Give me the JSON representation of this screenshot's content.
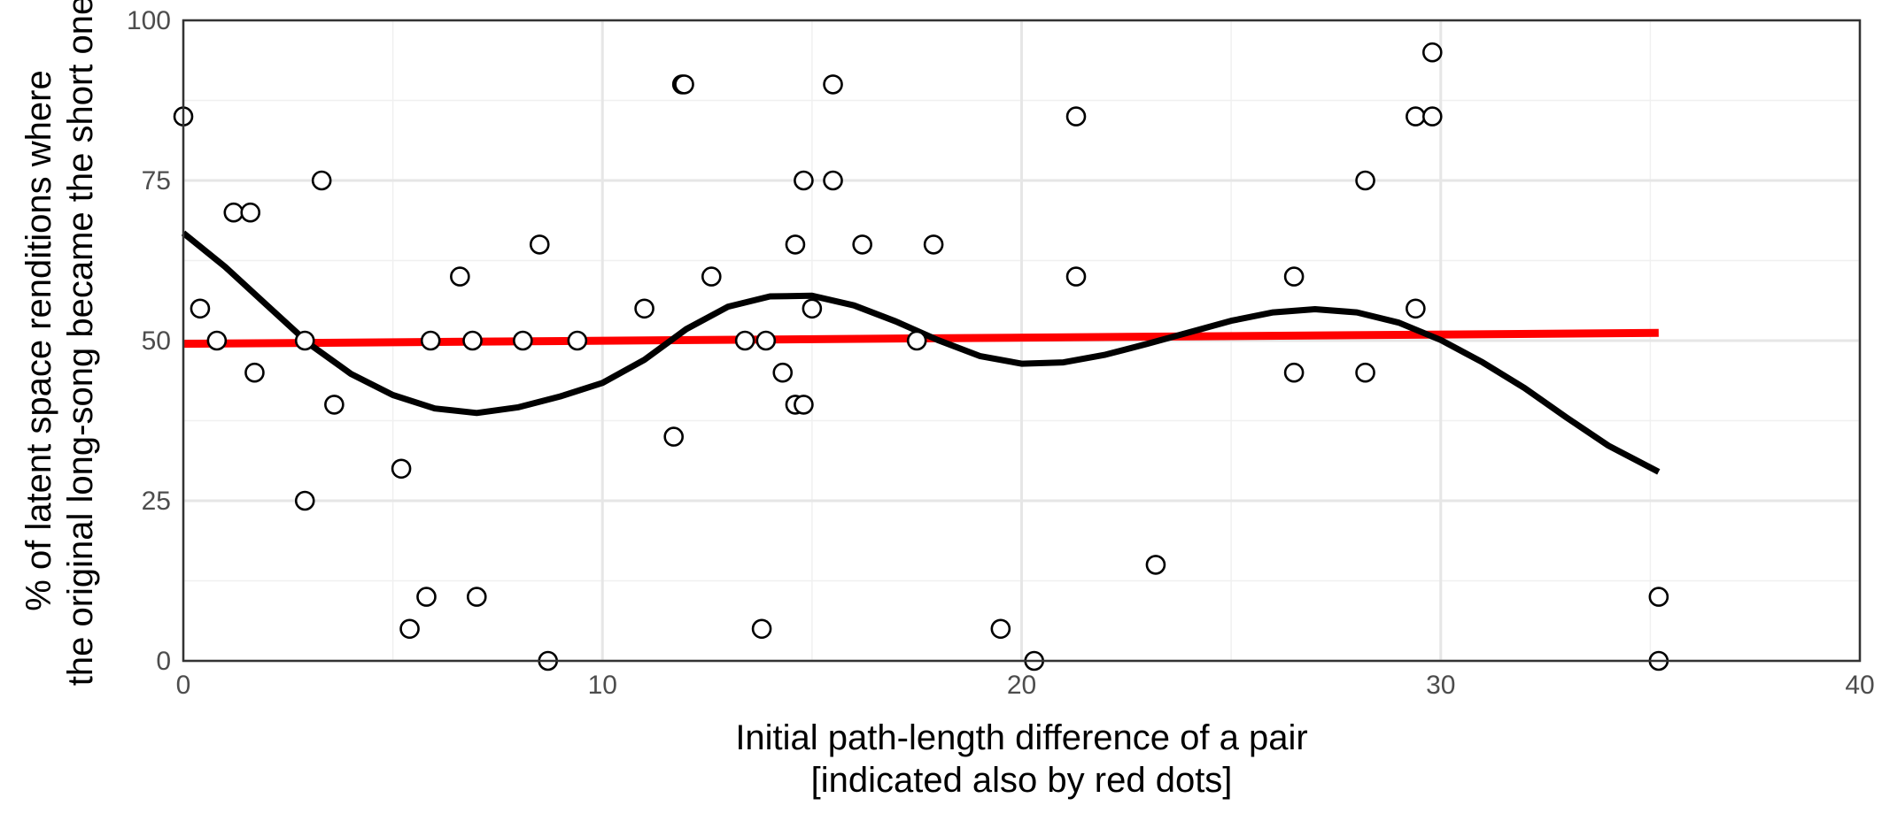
{
  "chart_data": {
    "type": "scatter",
    "title": "",
    "xlabel_lines": [
      "Initial path-length difference of a pair",
      "[indicated also by red dots]"
    ],
    "ylabel_lines": [
      "% of latent space renditions where",
      "the original long-song became the short one"
    ],
    "xlim": [
      0,
      40
    ],
    "ylim": [
      0,
      100
    ],
    "x_ticks": [
      0,
      10,
      20,
      30,
      40
    ],
    "y_ticks": [
      0,
      25,
      50,
      75,
      100
    ],
    "x_tick_labels": [
      "0",
      "10",
      "20",
      "30",
      "40"
    ],
    "y_tick_labels": [
      "0",
      "25",
      "50",
      "75",
      "100"
    ],
    "grid": true,
    "colors": {
      "points": "#000000",
      "linear_fit": "#ff0000",
      "smooth_fit": "#000000"
    },
    "series": [
      {
        "kind": "points",
        "points": [
          [
            0.0,
            85
          ],
          [
            0.4,
            55
          ],
          [
            0.8,
            50
          ],
          [
            1.2,
            70
          ],
          [
            1.6,
            70
          ],
          [
            1.7,
            45
          ],
          [
            2.9,
            25
          ],
          [
            2.9,
            50
          ],
          [
            3.3,
            75
          ],
          [
            3.6,
            40
          ],
          [
            5.2,
            30
          ],
          [
            5.4,
            5
          ],
          [
            5.8,
            10
          ],
          [
            5.9,
            50
          ],
          [
            6.6,
            60
          ],
          [
            6.9,
            50
          ],
          [
            7.0,
            10
          ],
          [
            8.1,
            50
          ],
          [
            8.5,
            65
          ],
          [
            8.7,
            0
          ],
          [
            9.4,
            50
          ],
          [
            11.0,
            55
          ],
          [
            11.7,
            35
          ],
          [
            11.9,
            90
          ],
          [
            11.95,
            90
          ],
          [
            12.6,
            60
          ],
          [
            13.4,
            50
          ],
          [
            13.8,
            5
          ],
          [
            13.9,
            50
          ],
          [
            14.3,
            45
          ],
          [
            14.6,
            40
          ],
          [
            14.6,
            65
          ],
          [
            14.8,
            40
          ],
          [
            14.8,
            75
          ],
          [
            15.0,
            55
          ],
          [
            15.5,
            75
          ],
          [
            15.5,
            90
          ],
          [
            16.2,
            65
          ],
          [
            17.5,
            50
          ],
          [
            17.9,
            65
          ],
          [
            19.5,
            5
          ],
          [
            20.3,
            0
          ],
          [
            21.3,
            85
          ],
          [
            21.3,
            60
          ],
          [
            23.2,
            15
          ],
          [
            26.5,
            60
          ],
          [
            26.5,
            45
          ],
          [
            28.2,
            75
          ],
          [
            28.2,
            45
          ],
          [
            29.4,
            85
          ],
          [
            29.4,
            55
          ],
          [
            29.8,
            85
          ],
          [
            29.8,
            95
          ],
          [
            35.2,
            10
          ],
          [
            35.2,
            0
          ]
        ]
      },
      {
        "kind": "linear_fit",
        "points": [
          [
            0,
            49.5
          ],
          [
            35.2,
            51.2
          ]
        ]
      },
      {
        "kind": "smooth_fit",
        "points": [
          [
            0,
            66.8
          ],
          [
            1,
            61.5
          ],
          [
            2,
            55.5
          ],
          [
            3,
            49.5
          ],
          [
            4,
            44.8
          ],
          [
            5,
            41.5
          ],
          [
            6,
            39.4
          ],
          [
            7,
            38.7
          ],
          [
            8,
            39.6
          ],
          [
            9,
            41.3
          ],
          [
            10,
            43.4
          ],
          [
            11,
            47.0
          ],
          [
            12,
            51.8
          ],
          [
            13,
            55.3
          ],
          [
            14,
            56.9
          ],
          [
            15,
            57.0
          ],
          [
            16,
            55.5
          ],
          [
            17,
            53.0
          ],
          [
            18,
            50.1
          ],
          [
            19,
            47.6
          ],
          [
            20,
            46.4
          ],
          [
            21,
            46.6
          ],
          [
            22,
            47.8
          ],
          [
            23,
            49.5
          ],
          [
            24,
            51.3
          ],
          [
            25,
            53.1
          ],
          [
            26,
            54.4
          ],
          [
            27,
            54.9
          ],
          [
            28,
            54.4
          ],
          [
            29,
            52.8
          ],
          [
            30,
            50.1
          ],
          [
            31,
            46.6
          ],
          [
            32,
            42.6
          ],
          [
            33,
            38.0
          ],
          [
            34,
            33.6
          ],
          [
            35.2,
            29.5
          ]
        ]
      }
    ]
  }
}
